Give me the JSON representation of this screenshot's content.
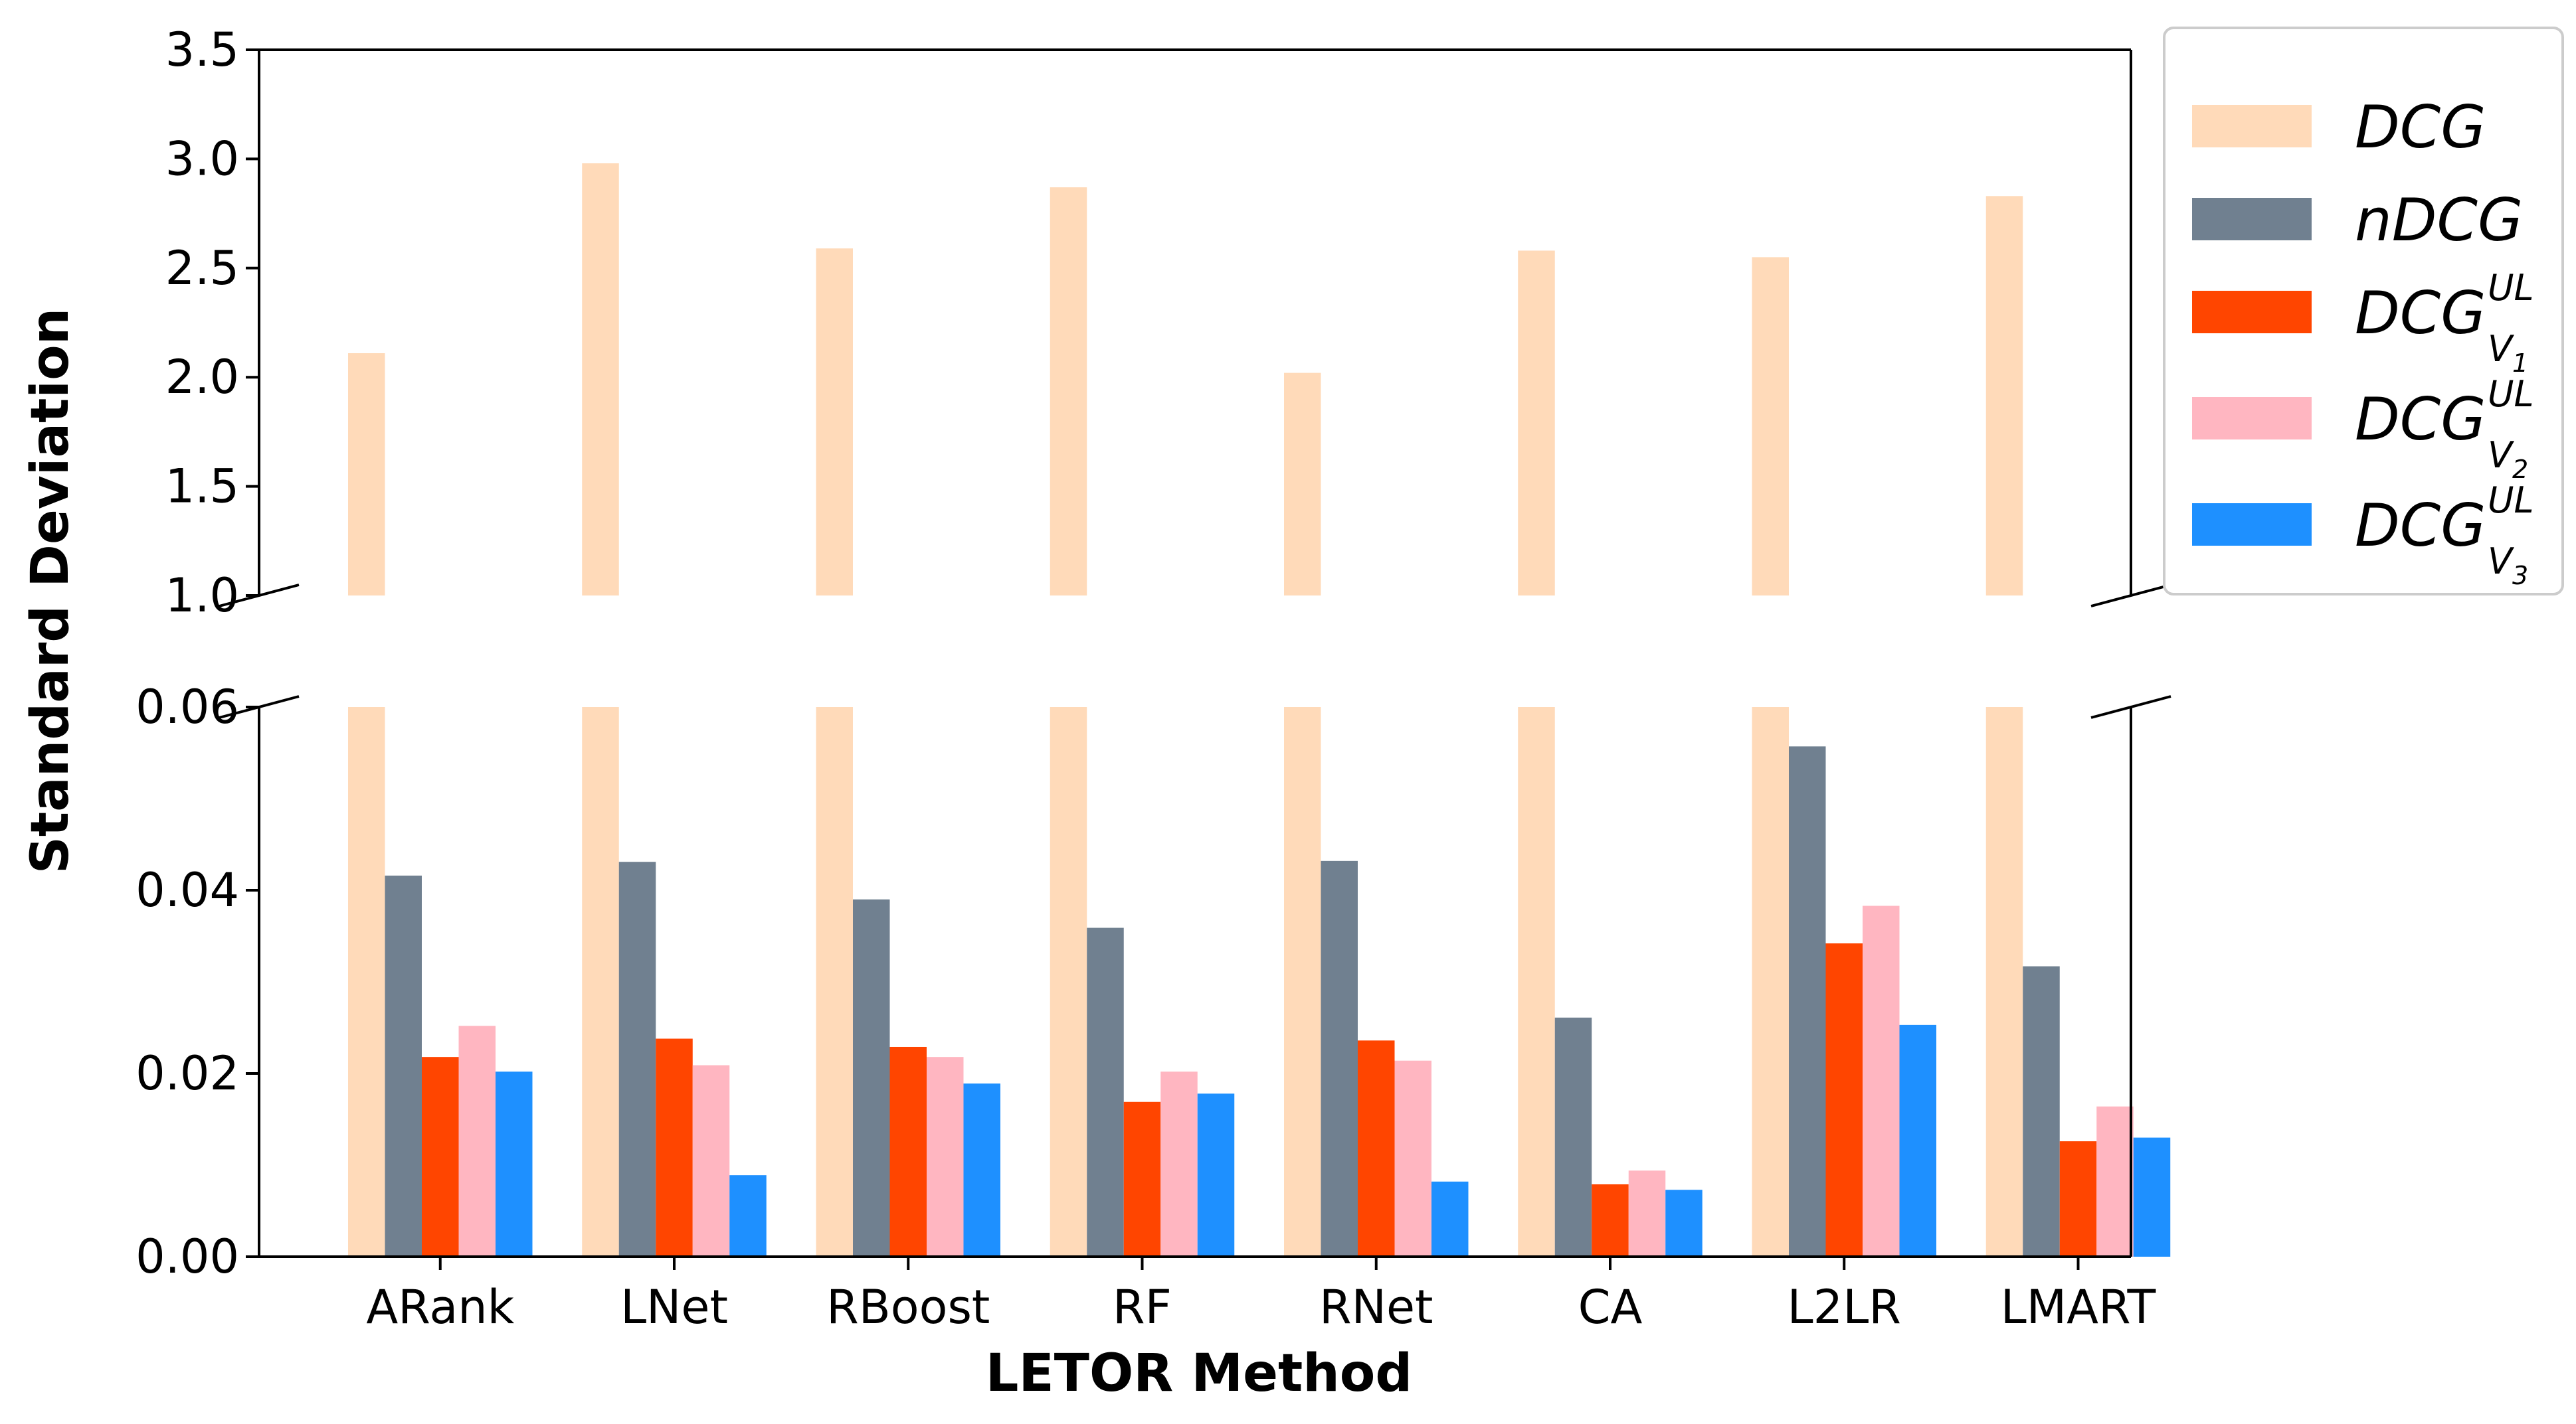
{
  "chart_data": {
    "type": "bar",
    "xlabel": "LETOR Method",
    "ylabel": "Standard Deviation",
    "categories": [
      "ARank",
      "LNet",
      "RBoost",
      "RF",
      "RNet",
      "CA",
      "L2LR",
      "LMART"
    ],
    "broken_axis": true,
    "upper_ylim": [
      1.0,
      3.5
    ],
    "lower_ylim": [
      0.0,
      0.06
    ],
    "upper_yticks": [
      "1.0",
      "1.5",
      "2.0",
      "2.5",
      "3.0",
      "3.5"
    ],
    "lower_yticks": [
      "0.00",
      "0.02",
      "0.04",
      "0.06"
    ],
    "legend_position": "right",
    "series": [
      {
        "name": "DCG",
        "color": "#FFDAB9",
        "values": [
          2.11,
          2.98,
          2.59,
          2.87,
          2.02,
          2.58,
          2.55,
          2.83
        ]
      },
      {
        "name": "nDCG",
        "color": "#708090",
        "values": [
          0.0416,
          0.0431,
          0.039,
          0.0359,
          0.0432,
          0.0261,
          0.0557,
          0.0317
        ]
      },
      {
        "name": "DCG",
        "sup": "UL",
        "sub": "V",
        "subsub": "1",
        "color": "#FF4500",
        "values": [
          0.0218,
          0.0238,
          0.0229,
          0.0169,
          0.0236,
          0.0079,
          0.0342,
          0.0126
        ]
      },
      {
        "name": "DCG",
        "sup": "UL",
        "sub": "V",
        "subsub": "2",
        "color": "#FFB6C1",
        "values": [
          0.0252,
          0.0209,
          0.0218,
          0.0202,
          0.0214,
          0.0094,
          0.0383,
          0.0164
        ]
      },
      {
        "name": "DCG",
        "sup": "UL",
        "sub": "V",
        "subsub": "3",
        "color": "#1E90FF",
        "values": [
          0.0202,
          0.0089,
          0.0189,
          0.0178,
          0.0082,
          0.0073,
          0.0253,
          0.013
        ]
      }
    ]
  }
}
